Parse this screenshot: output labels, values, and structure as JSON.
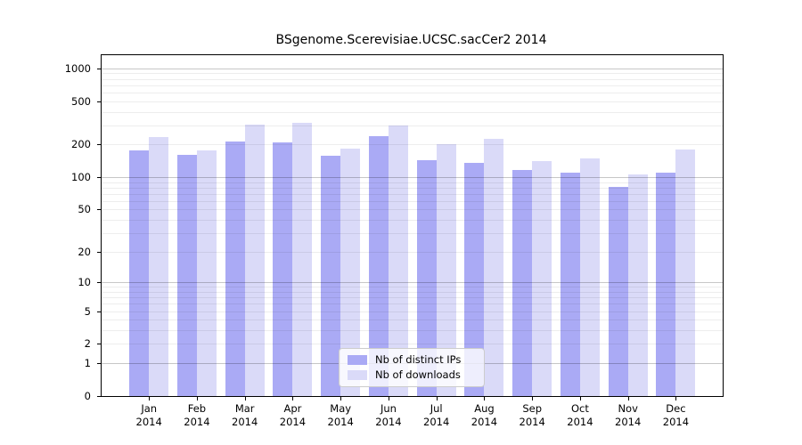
{
  "chart_data": {
    "type": "bar",
    "title": "BSgenome.Scerevisiae.UCSC.sacCer2 2014",
    "categories": [
      "Jan",
      "Feb",
      "Mar",
      "Apr",
      "May",
      "Jun",
      "Jul",
      "Aug",
      "Sep",
      "Oct",
      "Nov",
      "Dec"
    ],
    "x_year_label": "2014",
    "series": [
      {
        "name": "Nb of distinct IPs",
        "color": "#aaaaf5",
        "values": [
          178,
          160,
          213,
          210,
          158,
          238,
          143,
          136,
          117,
          110,
          82,
          111
        ]
      },
      {
        "name": "Nb of downloads",
        "color": "#dadaf8",
        "values": [
          234,
          178,
          306,
          315,
          182,
          300,
          202,
          226,
          140,
          148,
          105,
          180
        ]
      }
    ],
    "xlabel": "",
    "ylabel": "",
    "yscale": "log1p",
    "ylim": [
      0,
      1320
    ],
    "yticks": [
      0,
      1,
      2,
      5,
      10,
      20,
      50,
      100,
      200,
      500,
      1000
    ],
    "grid": {
      "on": true,
      "drawn_over_bars": true,
      "major_values": [
        1,
        10,
        100,
        1000
      ],
      "minor_color": "rgba(0,0,0,0.07)",
      "major_color": "rgba(0,0,0,0.22)"
    },
    "legend": {
      "position": "bottom-center",
      "entries": [
        "Nb of distinct IPs",
        "Nb of downloads"
      ]
    }
  }
}
